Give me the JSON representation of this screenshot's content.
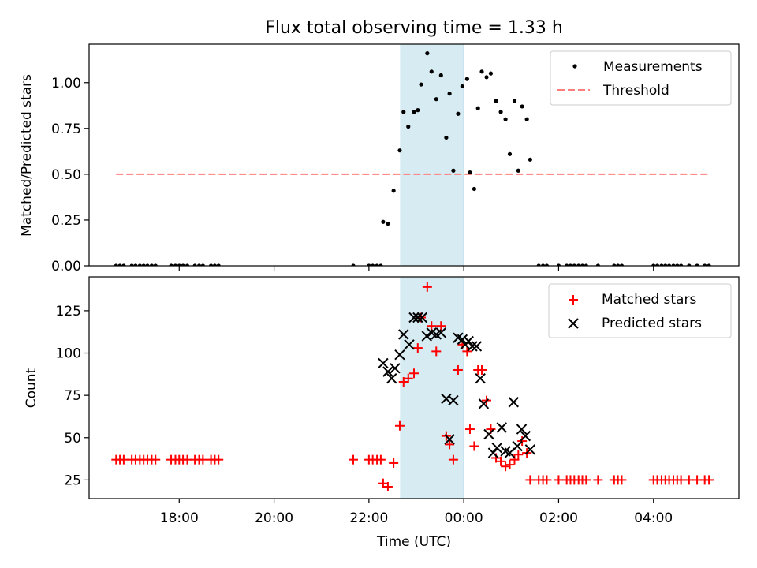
{
  "chart_data": [
    {
      "type": "scatter",
      "title": "Flux total observing time = 1.33 h",
      "xlabel": "",
      "ylabel": "Matched/Predicted stars",
      "xlim_hours": [
        16.1,
        29.8
      ],
      "ylim": [
        0,
        1.21
      ],
      "yticks": [
        0.0,
        0.25,
        0.5,
        0.75,
        1.0
      ],
      "ytick_labels": [
        "0.00",
        "0.25",
        "0.50",
        "0.75",
        "1.00"
      ],
      "shaded_span_hours": [
        22.67,
        24.0
      ],
      "threshold": {
        "name": "Threshold",
        "value": 0.5,
        "x_range_hours": [
          16.67,
          29.17
        ],
        "color": "#ff7f7f"
      },
      "legend_location": "upper right",
      "series": [
        {
          "name": "Measurements",
          "marker": "dot",
          "color": "#000000",
          "points": [
            [
              16.67,
              0
            ],
            [
              16.75,
              0
            ],
            [
              16.83,
              0
            ],
            [
              17.0,
              0
            ],
            [
              17.08,
              0
            ],
            [
              17.17,
              0
            ],
            [
              17.25,
              0
            ],
            [
              17.33,
              0
            ],
            [
              17.42,
              0
            ],
            [
              17.5,
              0
            ],
            [
              17.83,
              0
            ],
            [
              17.92,
              0
            ],
            [
              18.0,
              0
            ],
            [
              18.08,
              0
            ],
            [
              18.17,
              0
            ],
            [
              18.33,
              0
            ],
            [
              18.42,
              0
            ],
            [
              18.5,
              0
            ],
            [
              18.67,
              0
            ],
            [
              18.75,
              0
            ],
            [
              18.83,
              0
            ],
            [
              21.67,
              0
            ],
            [
              22.0,
              0
            ],
            [
              22.08,
              0
            ],
            [
              22.17,
              0
            ],
            [
              22.25,
              0
            ],
            [
              22.3,
              0.24
            ],
            [
              22.4,
              0.23
            ],
            [
              22.52,
              0.41
            ],
            [
              22.65,
              0.63
            ],
            [
              22.73,
              0.84
            ],
            [
              22.83,
              0.76
            ],
            [
              22.95,
              0.84
            ],
            [
              23.03,
              0.85
            ],
            [
              23.1,
              0.99
            ],
            [
              23.23,
              1.16
            ],
            [
              23.32,
              1.06
            ],
            [
              23.42,
              0.91
            ],
            [
              23.52,
              1.04
            ],
            [
              23.63,
              0.7
            ],
            [
              23.7,
              0.94
            ],
            [
              23.78,
              0.52
            ],
            [
              23.88,
              0.83
            ],
            [
              23.97,
              0.98
            ],
            [
              24.07,
              1.02
            ],
            [
              24.13,
              0.51
            ],
            [
              24.22,
              0.42
            ],
            [
              24.3,
              0.86
            ],
            [
              24.38,
              1.06
            ],
            [
              24.48,
              1.03
            ],
            [
              24.57,
              1.05
            ],
            [
              24.68,
              0.9
            ],
            [
              24.78,
              0.84
            ],
            [
              24.88,
              0.8
            ],
            [
              24.97,
              0.61
            ],
            [
              25.07,
              0.9
            ],
            [
              25.15,
              0.52
            ],
            [
              25.23,
              0.87
            ],
            [
              25.33,
              0.8
            ],
            [
              25.4,
              0.58
            ],
            [
              25.58,
              0
            ],
            [
              25.67,
              0
            ],
            [
              25.75,
              0
            ],
            [
              26.0,
              0
            ],
            [
              26.17,
              0
            ],
            [
              26.25,
              0
            ],
            [
              26.33,
              0
            ],
            [
              26.42,
              0
            ],
            [
              26.5,
              0
            ],
            [
              26.58,
              0
            ],
            [
              26.83,
              0
            ],
            [
              27.17,
              0
            ],
            [
              27.25,
              0
            ],
            [
              27.33,
              0
            ],
            [
              28.0,
              0
            ],
            [
              28.08,
              0
            ],
            [
              28.17,
              0
            ],
            [
              28.25,
              0
            ],
            [
              28.33,
              0
            ],
            [
              28.42,
              0
            ],
            [
              28.5,
              0
            ],
            [
              28.58,
              0
            ],
            [
              28.75,
              0
            ],
            [
              28.92,
              0
            ],
            [
              29.08,
              0
            ],
            [
              29.17,
              0
            ]
          ]
        }
      ]
    },
    {
      "type": "scatter",
      "title": "",
      "xlabel": "Time (UTC)",
      "ylabel": "Count",
      "xlim_hours": [
        16.1,
        29.8
      ],
      "ylim": [
        14,
        145
      ],
      "yticks": [
        25,
        50,
        75,
        100,
        125
      ],
      "ytick_labels": [
        "25",
        "50",
        "75",
        "100",
        "125"
      ],
      "xtick_hours": [
        18,
        20,
        22,
        24,
        26,
        28
      ],
      "xtick_labels": [
        "18:00",
        "20:00",
        "22:00",
        "00:00",
        "02:00",
        "04:00"
      ],
      "shaded_span_hours": [
        22.67,
        24.0
      ],
      "legend_location": "upper right",
      "series": [
        {
          "name": "Matched stars",
          "marker": "plus",
          "color": "#ff0000",
          "points": [
            [
              16.67,
              37
            ],
            [
              16.75,
              37
            ],
            [
              16.83,
              37
            ],
            [
              17.0,
              37
            ],
            [
              17.08,
              37
            ],
            [
              17.17,
              37
            ],
            [
              17.25,
              37
            ],
            [
              17.33,
              37
            ],
            [
              17.42,
              37
            ],
            [
              17.5,
              37
            ],
            [
              17.83,
              37
            ],
            [
              17.92,
              37
            ],
            [
              18.0,
              37
            ],
            [
              18.08,
              37
            ],
            [
              18.17,
              37
            ],
            [
              18.33,
              37
            ],
            [
              18.42,
              37
            ],
            [
              18.5,
              37
            ],
            [
              18.67,
              37
            ],
            [
              18.75,
              37
            ],
            [
              18.83,
              37
            ],
            [
              21.67,
              37
            ],
            [
              22.0,
              37
            ],
            [
              22.08,
              37
            ],
            [
              22.17,
              37
            ],
            [
              22.25,
              37
            ],
            [
              22.3,
              23
            ],
            [
              22.4,
              21
            ],
            [
              22.52,
              35
            ],
            [
              22.65,
              57
            ],
            [
              22.73,
              83
            ],
            [
              22.83,
              85
            ],
            [
              22.95,
              88
            ],
            [
              23.03,
              103
            ],
            [
              23.1,
              121
            ],
            [
              23.23,
              139
            ],
            [
              23.32,
              116
            ],
            [
              23.42,
              101
            ],
            [
              23.52,
              116
            ],
            [
              23.63,
              51
            ],
            [
              23.7,
              46
            ],
            [
              23.78,
              37
            ],
            [
              23.88,
              90
            ],
            [
              23.97,
              105
            ],
            [
              24.07,
              101
            ],
            [
              24.13,
              55
            ],
            [
              24.22,
              45
            ],
            [
              24.3,
              90
            ],
            [
              24.38,
              90
            ],
            [
              24.48,
              72
            ],
            [
              24.57,
              55
            ],
            [
              24.68,
              38
            ],
            [
              24.78,
              36
            ],
            [
              24.88,
              33
            ],
            [
              24.97,
              34
            ],
            [
              25.07,
              37
            ],
            [
              25.15,
              40
            ],
            [
              25.23,
              48
            ],
            [
              25.33,
              41
            ],
            [
              25.4,
              25
            ],
            [
              25.58,
              25
            ],
            [
              25.67,
              25
            ],
            [
              25.75,
              25
            ],
            [
              26.0,
              25
            ],
            [
              26.17,
              25
            ],
            [
              26.25,
              25
            ],
            [
              26.33,
              25
            ],
            [
              26.42,
              25
            ],
            [
              26.5,
              25
            ],
            [
              26.58,
              25
            ],
            [
              26.83,
              25
            ],
            [
              27.17,
              25
            ],
            [
              27.25,
              25
            ],
            [
              27.33,
              25
            ],
            [
              28.0,
              25
            ],
            [
              28.08,
              25
            ],
            [
              28.17,
              25
            ],
            [
              28.25,
              25
            ],
            [
              28.33,
              25
            ],
            [
              28.42,
              25
            ],
            [
              28.5,
              25
            ],
            [
              28.58,
              25
            ],
            [
              28.75,
              25
            ],
            [
              28.92,
              25
            ],
            [
              29.08,
              25
            ],
            [
              29.17,
              25
            ]
          ]
        },
        {
          "name": "Predicted stars",
          "marker": "x",
          "color": "#000000",
          "points": [
            [
              22.3,
              94
            ],
            [
              22.4,
              89
            ],
            [
              22.48,
              85
            ],
            [
              22.55,
              91
            ],
            [
              22.65,
              99
            ],
            [
              22.73,
              111
            ],
            [
              22.85,
              105
            ],
            [
              22.95,
              121
            ],
            [
              23.03,
              121
            ],
            [
              23.12,
              121
            ],
            [
              23.22,
              110
            ],
            [
              23.32,
              112
            ],
            [
              23.42,
              111
            ],
            [
              23.52,
              112
            ],
            [
              23.63,
              73
            ],
            [
              23.7,
              49
            ],
            [
              23.78,
              72
            ],
            [
              23.88,
              109
            ],
            [
              23.97,
              108
            ],
            [
              24.03,
              105
            ],
            [
              24.1,
              107
            ],
            [
              24.18,
              104
            ],
            [
              24.27,
              104
            ],
            [
              24.35,
              85
            ],
            [
              24.42,
              70
            ],
            [
              24.53,
              52
            ],
            [
              24.62,
              41
            ],
            [
              24.7,
              44
            ],
            [
              24.8,
              56
            ],
            [
              24.88,
              42
            ],
            [
              24.97,
              41
            ],
            [
              25.05,
              71
            ],
            [
              25.13,
              45
            ],
            [
              25.22,
              55
            ],
            [
              25.3,
              51
            ],
            [
              25.4,
              43
            ]
          ]
        }
      ]
    }
  ]
}
